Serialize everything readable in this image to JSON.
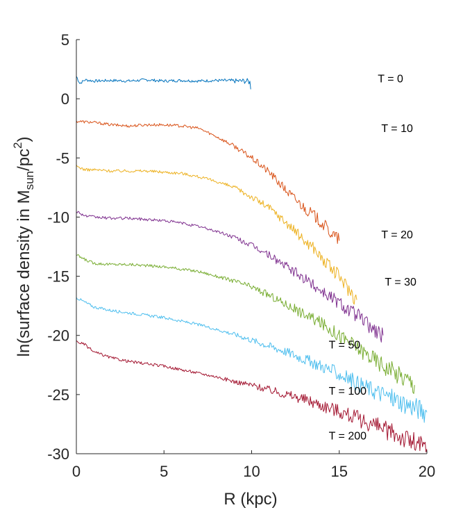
{
  "chart_data": {
    "type": "line",
    "title": "",
    "xlabel": "R (kpc)",
    "ylabel": {
      "main": "ln(surface density in M",
      "sub": "sun",
      "mid": "/pc",
      "sup": "2",
      "end": ")"
    },
    "xlim": [
      0,
      20
    ],
    "ylim": [
      -30,
      5
    ],
    "xticks": [
      0,
      5,
      10,
      15,
      20
    ],
    "yticks": [
      5,
      0,
      -5,
      -10,
      -15,
      -20,
      -25,
      -30
    ],
    "grid": false,
    "legend": "none",
    "series": [
      {
        "name": "T = 0",
        "color": "#0072BD",
        "x": [
          0,
          0.2,
          0.5,
          1,
          2,
          3,
          4,
          5,
          6,
          7,
          8,
          9,
          9.7,
          9.9,
          9.95
        ],
        "y": [
          1.9,
          1.3,
          1.6,
          1.5,
          1.55,
          1.5,
          1.6,
          1.5,
          1.55,
          1.5,
          1.55,
          1.5,
          1.5,
          1.4,
          0.8
        ]
      },
      {
        "name": "T = 10",
        "color": "#D95319",
        "x": [
          0,
          1,
          2,
          3,
          4,
          5,
          6,
          7,
          8,
          9,
          10,
          11,
          11.5,
          12,
          12.5,
          13,
          13.5,
          14,
          14.5,
          15
        ],
        "y": [
          -1.9,
          -2.0,
          -2.2,
          -2.3,
          -2.2,
          -2.2,
          -2.3,
          -2.5,
          -3.2,
          -4.0,
          -5.0,
          -6.2,
          -7.0,
          -7.8,
          -8.5,
          -9.2,
          -9.8,
          -10.5,
          -11.3,
          -12.0
        ]
      },
      {
        "name": "T = 20",
        "color": "#EDB120",
        "x": [
          0,
          0.5,
          1,
          2,
          3,
          4,
          5,
          6,
          7,
          8,
          9,
          10,
          11,
          12,
          12.5,
          13,
          13.5,
          14,
          14.5,
          15,
          15.5,
          16
        ],
        "y": [
          -5.7,
          -6.0,
          -6.0,
          -6.1,
          -6.1,
          -6.1,
          -6.2,
          -6.3,
          -6.6,
          -7.0,
          -7.5,
          -8.3,
          -9.2,
          -10.5,
          -11.2,
          -12.0,
          -12.5,
          -13.5,
          -14.3,
          -15.0,
          -16.0,
          -17.0
        ]
      },
      {
        "name": "T = 30",
        "color": "#7E2F8E",
        "x": [
          0,
          0.5,
          1,
          2,
          3,
          4,
          5,
          6,
          7,
          8,
          9,
          10,
          11,
          12,
          13,
          14,
          15,
          16,
          17,
          17.5
        ],
        "y": [
          -9.5,
          -9.9,
          -10.0,
          -10.1,
          -10.1,
          -10.2,
          -10.3,
          -10.5,
          -10.8,
          -11.2,
          -11.7,
          -12.4,
          -13.2,
          -14.2,
          -15.2,
          -16.2,
          -17.2,
          -18.3,
          -19.5,
          -20.0
        ]
      },
      {
        "name": "T = 50",
        "color": "#77AC30",
        "x": [
          0,
          0.5,
          1,
          2,
          3,
          4,
          5,
          6,
          7,
          8,
          9,
          10,
          11,
          12,
          13,
          14,
          15,
          16,
          17,
          18,
          19,
          19.3
        ],
        "y": [
          -13.2,
          -13.6,
          -13.9,
          -14.0,
          -14.0,
          -14.1,
          -14.2,
          -14.4,
          -14.6,
          -15.0,
          -15.4,
          -15.9,
          -16.6,
          -17.4,
          -18.2,
          -19.0,
          -20.0,
          -21.0,
          -22.0,
          -23.0,
          -23.8,
          -24.2
        ]
      },
      {
        "name": "T = 100",
        "color": "#4DBEEE",
        "x": [
          0,
          0.5,
          1,
          2,
          3,
          4,
          5,
          6,
          7,
          8,
          9,
          10,
          11,
          12,
          13,
          14,
          15,
          16,
          17,
          18,
          19,
          20
        ],
        "y": [
          -16.8,
          -17.2,
          -17.6,
          -17.9,
          -18.1,
          -18.3,
          -18.5,
          -18.8,
          -19.1,
          -19.5,
          -19.9,
          -20.4,
          -20.9,
          -21.4,
          -22.0,
          -22.6,
          -23.3,
          -24.0,
          -24.7,
          -25.3,
          -25.9,
          -26.5
        ]
      },
      {
        "name": "T = 200",
        "color": "#A2142F",
        "x": [
          0,
          0.5,
          1,
          2,
          3,
          4,
          5,
          6,
          7,
          8,
          9,
          10,
          11,
          12,
          13,
          14,
          15,
          16,
          17,
          18,
          19,
          20
        ],
        "y": [
          -20.5,
          -20.8,
          -21.4,
          -21.9,
          -22.2,
          -22.4,
          -22.6,
          -22.9,
          -23.2,
          -23.5,
          -23.9,
          -24.2,
          -24.6,
          -25.0,
          -25.4,
          -25.9,
          -26.4,
          -27.0,
          -27.6,
          -28.2,
          -28.9,
          -29.6
        ]
      }
    ],
    "annotations": [
      {
        "text": "T = 0",
        "x": 17.2,
        "y": 1.4
      },
      {
        "text": "T = 10",
        "x": 17.4,
        "y": -2.8
      },
      {
        "text": "T = 20",
        "x": 17.4,
        "y": -11.8
      },
      {
        "text": "T = 30",
        "x": 17.6,
        "y": -15.8
      },
      {
        "text": "T = 50",
        "x": 14.4,
        "y": -21.1
      },
      {
        "text": "T = 100",
        "x": 14.4,
        "y": -25.0
      },
      {
        "text": "T = 200",
        "x": 14.4,
        "y": -28.8
      }
    ]
  }
}
